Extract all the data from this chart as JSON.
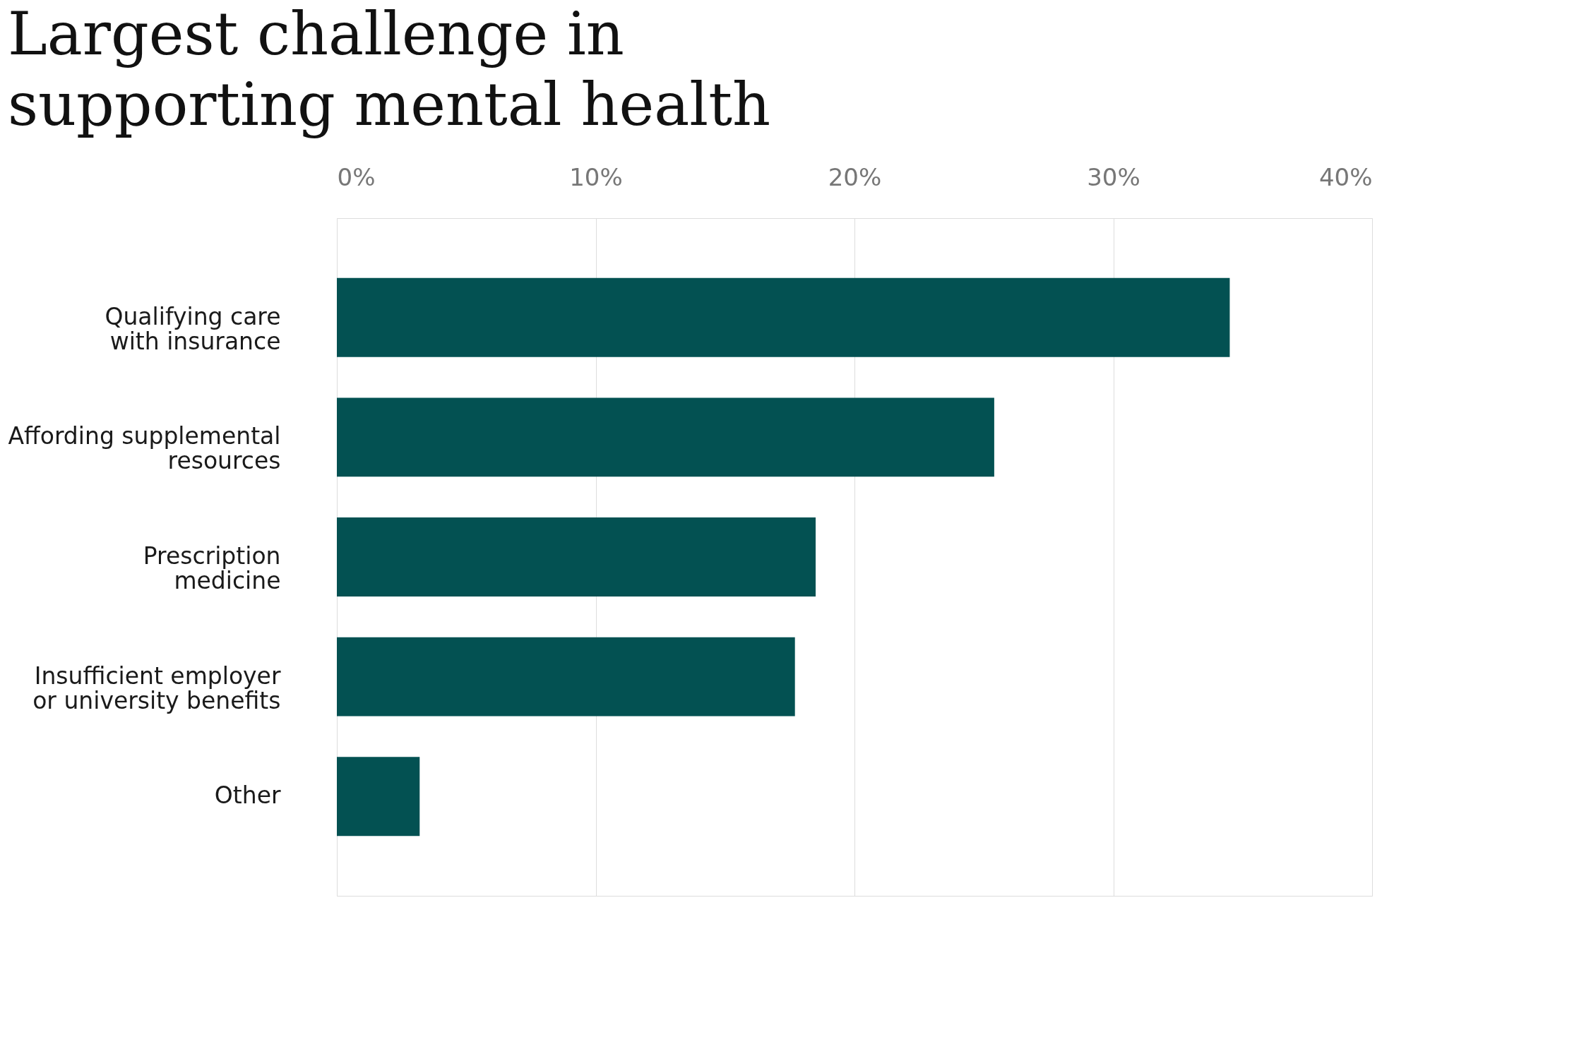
{
  "chart_data": {
    "type": "bar",
    "orientation": "horizontal",
    "title": "Largest challenge in supporting mental health",
    "categories": [
      "Qualifying care with insurance",
      "Affording supplemental resources",
      "Prescription medicine",
      "Insufficient employer or university benefits",
      "Other"
    ],
    "values": [
      34.5,
      25.4,
      18.5,
      17.7,
      3.2
    ],
    "color": "#035152",
    "xlim": [
      0,
      40
    ],
    "xticks": [
      {
        "value": 0,
        "label": "0%"
      },
      {
        "value": 10,
        "label": "10%"
      },
      {
        "value": 20,
        "label": "20%"
      },
      {
        "value": 30,
        "label": "30%"
      },
      {
        "value": 40,
        "label": "40%"
      }
    ],
    "grid": "x"
  }
}
